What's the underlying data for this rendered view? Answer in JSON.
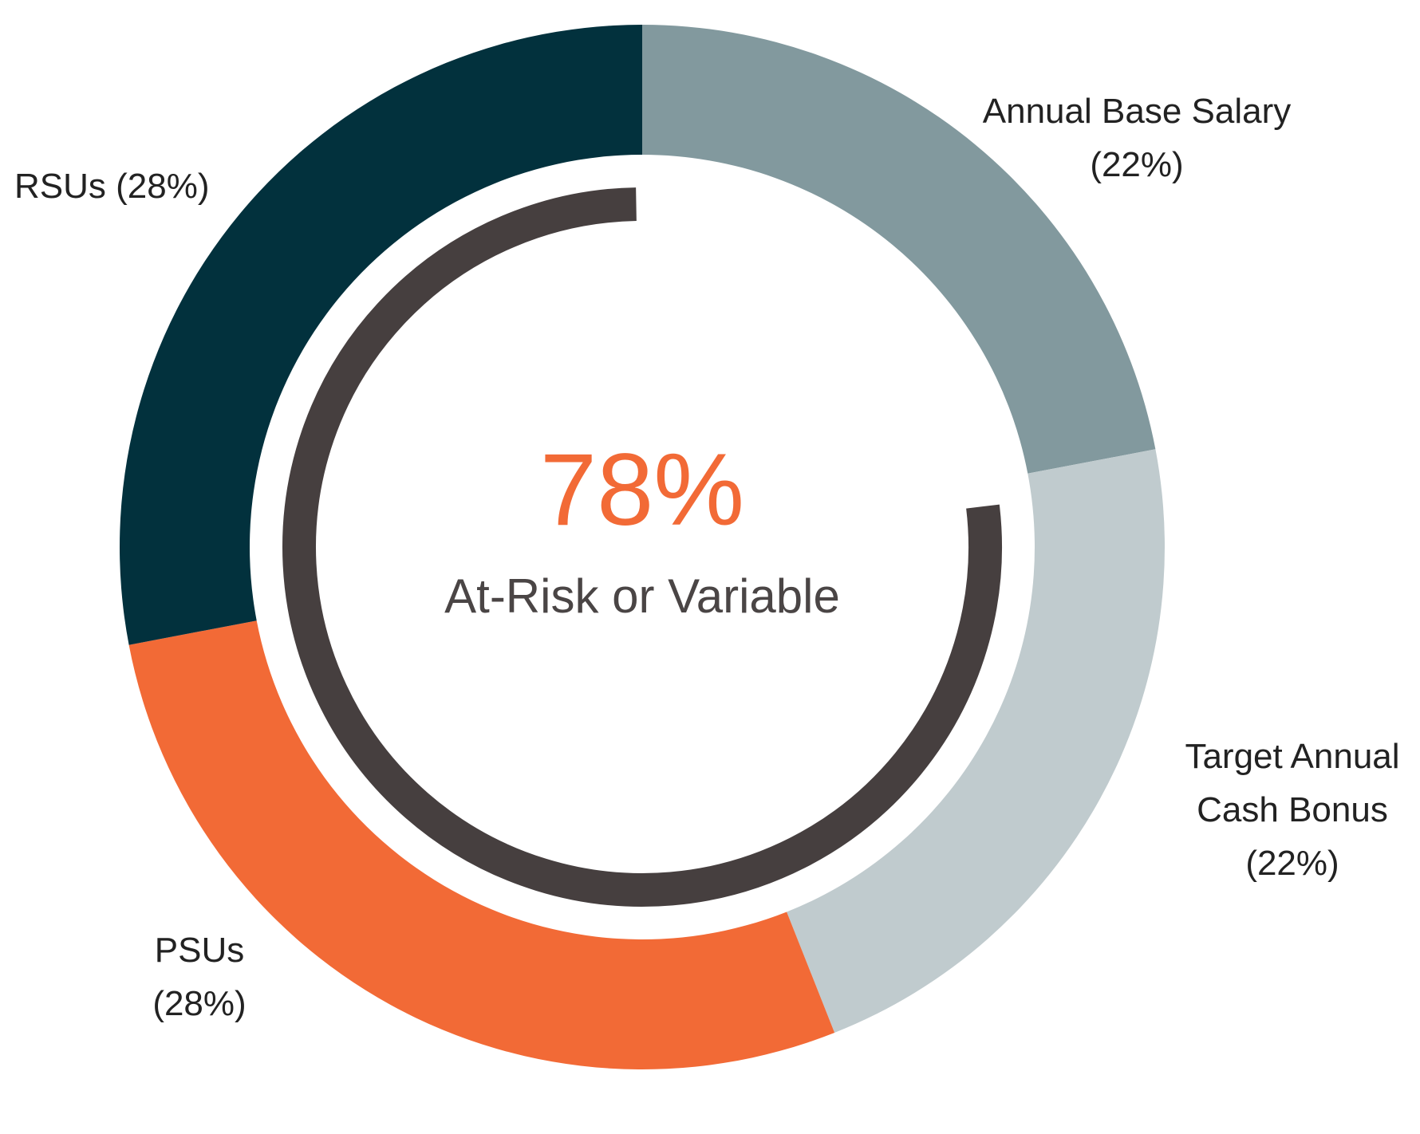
{
  "chart_data": {
    "type": "pie",
    "variant": "donut",
    "slices": [
      {
        "name": "Annual Base Salary",
        "label_lines": [
          "Annual Base Salary",
          "(22%)"
        ],
        "value": 22,
        "color": "#82999e",
        "label_side": "right"
      },
      {
        "name": "Target Annual Cash Bonus",
        "label_lines": [
          "Target Annual",
          "Cash Bonus",
          "(22%)"
        ],
        "value": 22,
        "color": "#c0cbce",
        "label_side": "right"
      },
      {
        "name": "PSUs",
        "label_lines": [
          "PSUs",
          "(28%)"
        ],
        "value": 28,
        "color": "#f26a36",
        "label_side": "left"
      },
      {
        "name": "RSUs",
        "label_lines": [
          "RSUs (28%)"
        ],
        "value": 28,
        "color": "#02313d",
        "label_side": "left"
      }
    ],
    "center": {
      "value": "78%",
      "caption": "At-Risk or Variable",
      "value_color": "#f26a36"
    },
    "highlight_arc": {
      "description": "At-risk or variable portion",
      "percent": 78,
      "color": "#463f3f"
    },
    "legend": "none"
  }
}
